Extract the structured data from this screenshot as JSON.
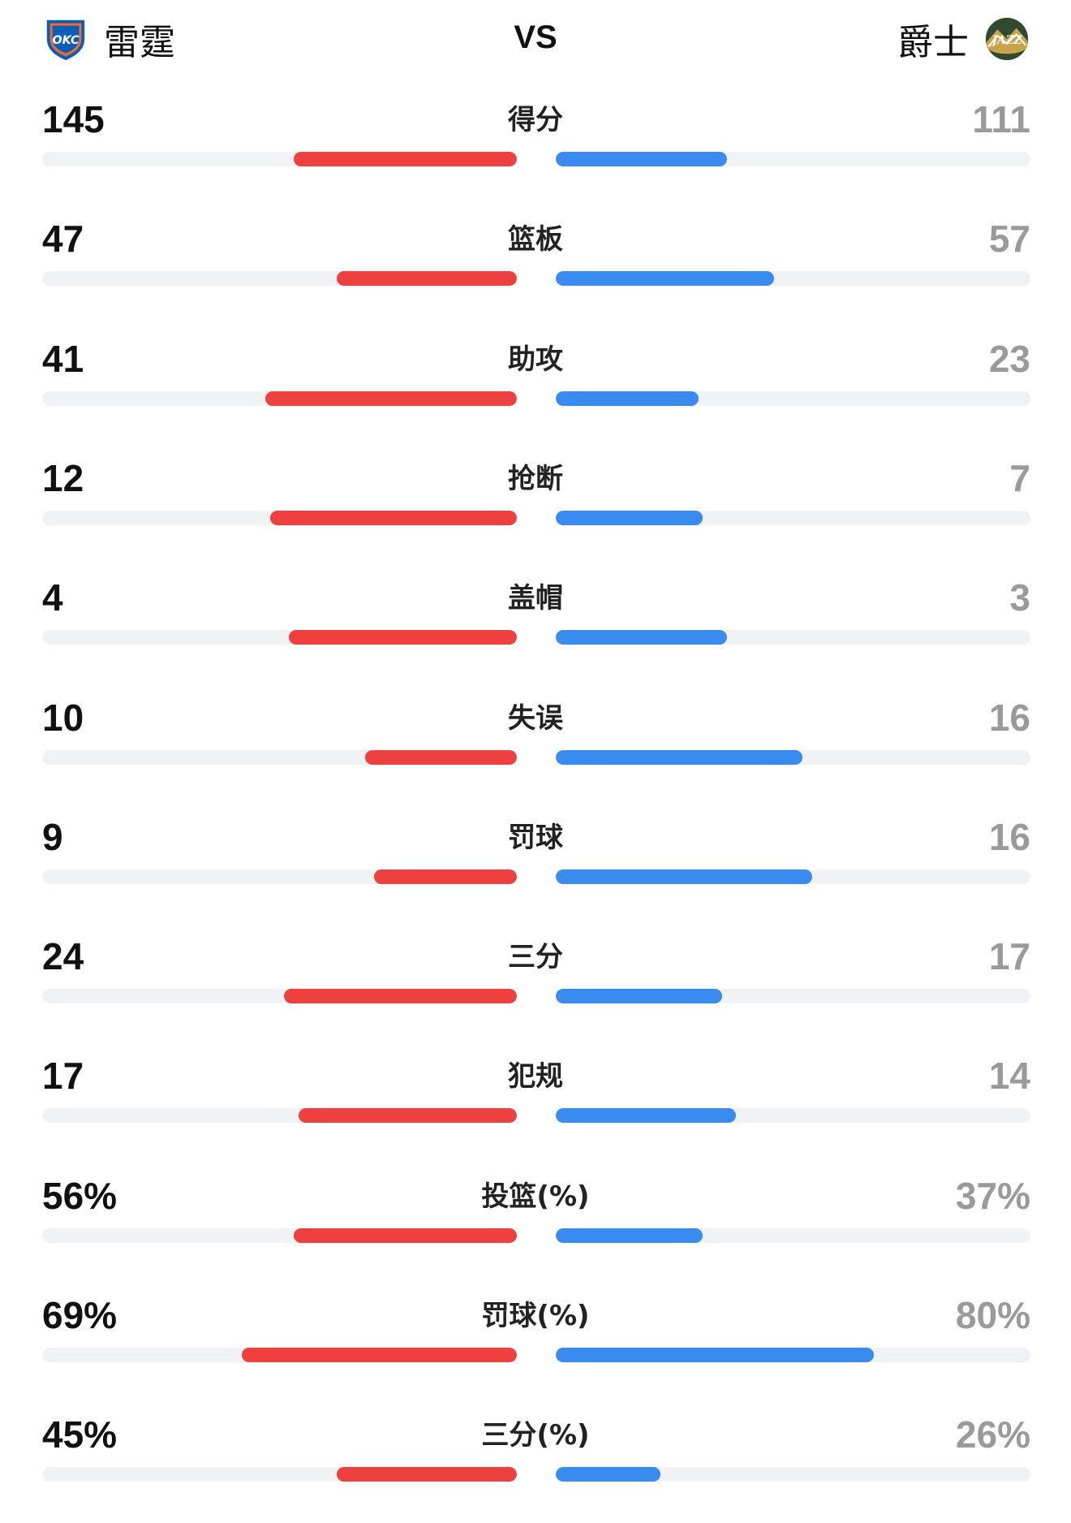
{
  "header": {
    "left_team": {
      "name": "雷霆",
      "logo_text": "OKC",
      "logo_icon": "okc-thunder-logo"
    },
    "vs": "VS",
    "right_team": {
      "name": "爵士",
      "logo_text": "JAZZ",
      "logo_icon": "utah-jazz-logo"
    }
  },
  "colors": {
    "left_bar": "#ef4040",
    "right_bar": "#3a8bf0",
    "track": "#f1f2f4",
    "right_value": "#9a9a9a"
  },
  "stats": [
    {
      "label": "得分",
      "left": "145",
      "right": "111",
      "left_fill": 0.47,
      "right_fill": 0.36
    },
    {
      "label": "篮板",
      "left": "47",
      "right": "57",
      "left_fill": 0.38,
      "right_fill": 0.46
    },
    {
      "label": "助攻",
      "left": "41",
      "right": "23",
      "left_fill": 0.53,
      "right_fill": 0.3
    },
    {
      "label": "抢断",
      "left": "12",
      "right": "7",
      "left_fill": 0.52,
      "right_fill": 0.31
    },
    {
      "label": "盖帽",
      "left": "4",
      "right": "3",
      "left_fill": 0.48,
      "right_fill": 0.36
    },
    {
      "label": "失误",
      "left": "10",
      "right": "16",
      "left_fill": 0.32,
      "right_fill": 0.52
    },
    {
      "label": "罚球",
      "left": "9",
      "right": "16",
      "left_fill": 0.3,
      "right_fill": 0.54
    },
    {
      "label": "三分",
      "left": "24",
      "right": "17",
      "left_fill": 0.49,
      "right_fill": 0.35
    },
    {
      "label": "犯规",
      "left": "17",
      "right": "14",
      "left_fill": 0.46,
      "right_fill": 0.38
    },
    {
      "label": "投篮(%)",
      "left": "56%",
      "right": "37%",
      "left_fill": 0.47,
      "right_fill": 0.31
    },
    {
      "label": "罚球(%)",
      "left": "69%",
      "right": "80%",
      "left_fill": 0.58,
      "right_fill": 0.67
    },
    {
      "label": "三分(%)",
      "left": "45%",
      "right": "26%",
      "left_fill": 0.38,
      "right_fill": 0.22
    }
  ]
}
